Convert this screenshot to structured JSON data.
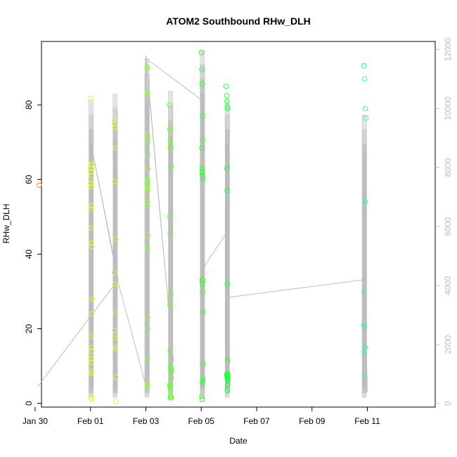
{
  "chart_data": {
    "type": "scatter",
    "title": "ATOM2 Southbound RHw_DLH",
    "xlabel": "Date",
    "ylabel": "RHw_DLH",
    "x_ticks": [
      "Jan 30",
      "Feb 01",
      "Feb 03",
      "Feb 05",
      "Feb 07",
      "Feb 09",
      "Feb 11"
    ],
    "y_ticks": [
      "0",
      "20",
      "40",
      "60",
      "80"
    ],
    "y2_ticks": [
      "0",
      "2000",
      "4000",
      "6000",
      "8000",
      "10000",
      "12000"
    ],
    "ylim": [
      -1,
      97
    ],
    "y2lim": [
      -120,
      12270
    ],
    "xlim_days": [
      -0.77,
      13.45
    ],
    "line_color": "#bdbdbd",
    "right_axis_color": "#bdbdbd",
    "point_groups": [
      {
        "day": 0,
        "color": "#ff7f2a",
        "days": [
          -0.85
        ],
        "values": [
          58.5
        ]
      },
      {
        "day": 1,
        "color": "#d9ff26",
        "days": [
          1.0,
          1.0,
          1.0,
          1.02,
          1.02,
          1.03,
          1.02,
          1.03,
          1.03,
          1.04,
          1.02,
          1.03,
          1.04,
          1.05,
          1.06,
          1.07,
          1.06,
          1.02,
          1.03,
          1.04,
          1.02,
          1.03,
          1.04,
          1.03,
          1.02,
          1.04
        ],
        "values": [
          81.8,
          63,
          59,
          52,
          47,
          43,
          62,
          64,
          59,
          61,
          58,
          53,
          42,
          63,
          64,
          28,
          24,
          18,
          15,
          14,
          12,
          11,
          8.5,
          8,
          1.5,
          1
        ]
      },
      {
        "day": 2,
        "color": "#c6ff33",
        "days": [
          1.85,
          1.87,
          1.88,
          1.9,
          1.88,
          1.92,
          1.86,
          1.88,
          1.9,
          1.87,
          1.88,
          1.9,
          1.9,
          1.92,
          1.92
        ],
        "values": [
          76,
          75,
          74,
          68.5,
          59.5,
          44,
          35,
          32,
          24,
          19.5,
          17.5,
          15,
          14.5,
          7,
          0.5
        ]
      },
      {
        "day": 3,
        "color": "#90ff40",
        "days": [
          3.05,
          3.05,
          3.06,
          3.06,
          3.07,
          3.07,
          3.08,
          3.08,
          3.08,
          3.07,
          3.06,
          3.05,
          3.06,
          3.07,
          3.06,
          3.07,
          3.08,
          3.06,
          3.07,
          3.05,
          3.07,
          3.06,
          3.05,
          3.07
        ],
        "values": [
          89.8,
          83.5,
          83,
          72,
          71,
          70,
          66.7,
          62.8,
          59.5,
          58.3,
          57.7,
          54,
          53,
          45,
          41.5,
          23,
          20,
          12,
          5,
          4.5,
          90,
          83,
          60,
          57
        ]
      },
      {
        "day": 4,
        "color": "#66ff33",
        "days": [
          3.85,
          3.87,
          3.88,
          3.9,
          3.88,
          3.92,
          3.86,
          3.88,
          3.9,
          3.87,
          3.88,
          3.9,
          3.9,
          3.92,
          3.92,
          3.86,
          3.87,
          3.88,
          3.89,
          3.9,
          3.91,
          3.92,
          3.93,
          3.88
        ],
        "values": [
          80,
          73.5,
          70.5,
          69,
          68.5,
          63.5,
          50,
          45.5,
          29,
          26.5,
          14,
          10,
          9.5,
          8.5,
          7,
          5,
          4.5,
          4,
          3.5,
          2,
          1.5,
          1.5,
          9,
          1.5
        ]
      },
      {
        "day": 5,
        "color": "#33ff26",
        "days": [
          5.0,
          5.02,
          5.03,
          5.04,
          5.05,
          5.02,
          5.03,
          5.04,
          5.05,
          5.06,
          5.03,
          5.04,
          5.05,
          5.06,
          5.07,
          5.06,
          5.04,
          5.02,
          5.03,
          5.05,
          5.06,
          5.03,
          5.04
        ],
        "values": [
          94,
          89.5,
          85.5,
          77,
          70.5,
          68.5,
          63,
          62,
          61,
          60,
          33,
          32,
          30,
          24.5,
          10.5,
          6.5,
          5.5,
          1.8,
          1.0,
          6,
          33,
          62,
          61
        ]
      },
      {
        "day": 6,
        "color": "#1aff40",
        "days": [
          5.9,
          5.92,
          5.93,
          5.94,
          5.95,
          5.92,
          5.93,
          5.94,
          5.95,
          5.96,
          5.93,
          5.94,
          5.95,
          5.96,
          5.97,
          5.96,
          5.94,
          5.92,
          5.93,
          5.95,
          5.96
        ],
        "values": [
          85,
          82.5,
          81,
          79.5,
          79,
          63,
          57,
          32,
          11.5,
          8,
          7.5,
          7,
          6.8,
          6.5,
          6,
          5,
          3.5,
          7.8,
          7.2,
          6.8,
          7.5
        ]
      },
      {
        "day": 7,
        "color": "#26ffa6",
        "days": [
          10.87,
          10.9,
          10.92,
          10.95,
          10.93,
          10.88,
          10.87,
          10.9,
          10.92,
          10.89,
          10.9
        ],
        "values": [
          90.5,
          87,
          79,
          76.5,
          54,
          30,
          21,
          20.5,
          15,
          13.5,
          7
        ]
      }
    ],
    "line_series": {
      "days": [
        -0.9,
        2.0,
        1.0,
        2.0,
        3.0,
        3.0,
        4.0,
        3.0,
        5.0,
        5.0,
        6.0,
        6.0,
        10.9,
        11.0
      ],
      "values": [
        580,
        4200,
        8900,
        4100,
        600,
        11800,
        1400,
        11700,
        10300,
        4500,
        5900,
        3600,
        4200,
        400
      ]
    }
  }
}
